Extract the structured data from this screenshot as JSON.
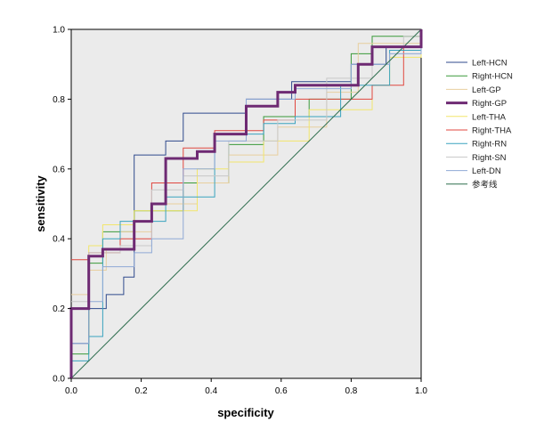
{
  "chart_data": {
    "type": "line",
    "title": "",
    "xlabel": "specificity",
    "ylabel": "sensitivity",
    "xlim": [
      0,
      1
    ],
    "ylim": [
      0,
      1
    ],
    "xticks": [
      "0.0",
      "0.2",
      "0.4",
      "0.6",
      "0.8",
      "1.0"
    ],
    "yticks": [
      "0.0",
      "0.2",
      "0.4",
      "0.6",
      "0.8",
      "1.0"
    ],
    "grid": false,
    "plot_background": "#ebebeb",
    "legend_position": "right",
    "series": [
      {
        "name": "Left-HCN",
        "color": "#2f4a8c",
        "width": 1,
        "points": [
          [
            0,
            0
          ],
          [
            0,
            0.1
          ],
          [
            0.05,
            0.1
          ],
          [
            0.05,
            0.2
          ],
          [
            0.1,
            0.2
          ],
          [
            0.1,
            0.24
          ],
          [
            0.15,
            0.24
          ],
          [
            0.15,
            0.29
          ],
          [
            0.18,
            0.29
          ],
          [
            0.18,
            0.64
          ],
          [
            0.27,
            0.64
          ],
          [
            0.27,
            0.68
          ],
          [
            0.32,
            0.68
          ],
          [
            0.32,
            0.76
          ],
          [
            0.5,
            0.76
          ],
          [
            0.5,
            0.8
          ],
          [
            0.63,
            0.8
          ],
          [
            0.63,
            0.85
          ],
          [
            0.8,
            0.85
          ],
          [
            0.8,
            0.9
          ],
          [
            0.9,
            0.9
          ],
          [
            0.9,
            0.95
          ],
          [
            1,
            0.95
          ],
          [
            1,
            1
          ]
        ]
      },
      {
        "name": "Right-HCN",
        "color": "#3a9a3a",
        "width": 1,
        "points": [
          [
            0,
            0
          ],
          [
            0,
            0.07
          ],
          [
            0.05,
            0.07
          ],
          [
            0.05,
            0.33
          ],
          [
            0.09,
            0.33
          ],
          [
            0.09,
            0.42
          ],
          [
            0.18,
            0.42
          ],
          [
            0.18,
            0.48
          ],
          [
            0.32,
            0.48
          ],
          [
            0.32,
            0.56
          ],
          [
            0.45,
            0.56
          ],
          [
            0.45,
            0.67
          ],
          [
            0.55,
            0.67
          ],
          [
            0.55,
            0.75
          ],
          [
            0.68,
            0.75
          ],
          [
            0.68,
            0.8
          ],
          [
            0.8,
            0.8
          ],
          [
            0.8,
            0.93
          ],
          [
            0.86,
            0.93
          ],
          [
            0.86,
            0.98
          ],
          [
            1,
            0.98
          ],
          [
            1,
            1
          ]
        ]
      },
      {
        "name": "Left-GP",
        "color": "#e8cf9e",
        "width": 1,
        "points": [
          [
            0,
            0.24
          ],
          [
            0.05,
            0.24
          ],
          [
            0.05,
            0.31
          ],
          [
            0.1,
            0.31
          ],
          [
            0.1,
            0.37
          ],
          [
            0.14,
            0.37
          ],
          [
            0.14,
            0.42
          ],
          [
            0.23,
            0.42
          ],
          [
            0.23,
            0.5
          ],
          [
            0.36,
            0.5
          ],
          [
            0.36,
            0.56
          ],
          [
            0.45,
            0.56
          ],
          [
            0.45,
            0.64
          ],
          [
            0.59,
            0.64
          ],
          [
            0.59,
            0.72
          ],
          [
            0.73,
            0.72
          ],
          [
            0.73,
            0.82
          ],
          [
            0.82,
            0.82
          ],
          [
            0.82,
            0.96
          ],
          [
            1,
            0.96
          ],
          [
            1,
            1
          ]
        ]
      },
      {
        "name": "Right-GP",
        "color": "#6e2a73",
        "width": 3,
        "points": [
          [
            0,
            0
          ],
          [
            0,
            0.2
          ],
          [
            0.05,
            0.2
          ],
          [
            0.05,
            0.35
          ],
          [
            0.09,
            0.35
          ],
          [
            0.09,
            0.37
          ],
          [
            0.18,
            0.37
          ],
          [
            0.18,
            0.45
          ],
          [
            0.23,
            0.45
          ],
          [
            0.23,
            0.5
          ],
          [
            0.27,
            0.5
          ],
          [
            0.27,
            0.63
          ],
          [
            0.36,
            0.63
          ],
          [
            0.36,
            0.65
          ],
          [
            0.41,
            0.65
          ],
          [
            0.41,
            0.7
          ],
          [
            0.5,
            0.7
          ],
          [
            0.5,
            0.78
          ],
          [
            0.59,
            0.78
          ],
          [
            0.59,
            0.82
          ],
          [
            0.64,
            0.82
          ],
          [
            0.64,
            0.84
          ],
          [
            0.82,
            0.84
          ],
          [
            0.82,
            0.9
          ],
          [
            0.86,
            0.9
          ],
          [
            0.86,
            0.95
          ],
          [
            1,
            0.95
          ],
          [
            1,
            1
          ]
        ]
      },
      {
        "name": "Left-THA",
        "color": "#f2e66c",
        "width": 1,
        "points": [
          [
            0,
            0.2
          ],
          [
            0.05,
            0.2
          ],
          [
            0.05,
            0.38
          ],
          [
            0.09,
            0.38
          ],
          [
            0.09,
            0.44
          ],
          [
            0.18,
            0.44
          ],
          [
            0.18,
            0.48
          ],
          [
            0.36,
            0.48
          ],
          [
            0.36,
            0.6
          ],
          [
            0.45,
            0.6
          ],
          [
            0.45,
            0.62
          ],
          [
            0.55,
            0.62
          ],
          [
            0.55,
            0.68
          ],
          [
            0.68,
            0.68
          ],
          [
            0.68,
            0.77
          ],
          [
            0.86,
            0.77
          ],
          [
            0.86,
            0.84
          ],
          [
            0.91,
            0.84
          ],
          [
            0.91,
            0.92
          ],
          [
            1,
            0.92
          ],
          [
            1,
            1
          ]
        ]
      },
      {
        "name": "Right-THA",
        "color": "#e0473f",
        "width": 1,
        "points": [
          [
            0,
            0.34
          ],
          [
            0.05,
            0.34
          ],
          [
            0.05,
            0.36
          ],
          [
            0.14,
            0.36
          ],
          [
            0.14,
            0.4
          ],
          [
            0.23,
            0.4
          ],
          [
            0.23,
            0.56
          ],
          [
            0.32,
            0.56
          ],
          [
            0.32,
            0.66
          ],
          [
            0.41,
            0.66
          ],
          [
            0.41,
            0.71
          ],
          [
            0.55,
            0.71
          ],
          [
            0.55,
            0.74
          ],
          [
            0.64,
            0.74
          ],
          [
            0.64,
            0.8
          ],
          [
            0.86,
            0.8
          ],
          [
            0.86,
            0.84
          ],
          [
            0.95,
            0.84
          ],
          [
            0.95,
            0.95
          ],
          [
            1,
            0.95
          ],
          [
            1,
            1
          ]
        ]
      },
      {
        "name": "Right-RN",
        "color": "#3aa3bf",
        "width": 1,
        "points": [
          [
            0,
            0
          ],
          [
            0,
            0.05
          ],
          [
            0.05,
            0.05
          ],
          [
            0.05,
            0.12
          ],
          [
            0.09,
            0.12
          ],
          [
            0.09,
            0.4
          ],
          [
            0.14,
            0.4
          ],
          [
            0.14,
            0.45
          ],
          [
            0.27,
            0.45
          ],
          [
            0.27,
            0.52
          ],
          [
            0.41,
            0.52
          ],
          [
            0.41,
            0.7
          ],
          [
            0.55,
            0.7
          ],
          [
            0.55,
            0.73
          ],
          [
            0.64,
            0.73
          ],
          [
            0.64,
            0.75
          ],
          [
            0.77,
            0.75
          ],
          [
            0.77,
            0.84
          ],
          [
            0.91,
            0.84
          ],
          [
            0.91,
            0.94
          ],
          [
            1,
            0.94
          ],
          [
            1,
            1
          ]
        ]
      },
      {
        "name": "Right-SN",
        "color": "#c8c8c8",
        "width": 1,
        "points": [
          [
            0,
            0.22
          ],
          [
            0.05,
            0.22
          ],
          [
            0.05,
            0.36
          ],
          [
            0.14,
            0.36
          ],
          [
            0.14,
            0.38
          ],
          [
            0.23,
            0.38
          ],
          [
            0.23,
            0.54
          ],
          [
            0.32,
            0.54
          ],
          [
            0.32,
            0.58
          ],
          [
            0.45,
            0.58
          ],
          [
            0.45,
            0.68
          ],
          [
            0.59,
            0.68
          ],
          [
            0.59,
            0.74
          ],
          [
            0.73,
            0.74
          ],
          [
            0.73,
            0.86
          ],
          [
            0.86,
            0.86
          ],
          [
            0.86,
            0.95
          ],
          [
            0.95,
            0.95
          ],
          [
            0.95,
            0.98
          ],
          [
            1,
            0.98
          ],
          [
            1,
            1
          ]
        ]
      },
      {
        "name": "Left-DN",
        "color": "#8fa9d6",
        "width": 1,
        "points": [
          [
            0,
            0
          ],
          [
            0,
            0.1
          ],
          [
            0.05,
            0.1
          ],
          [
            0.05,
            0.22
          ],
          [
            0.09,
            0.22
          ],
          [
            0.09,
            0.32
          ],
          [
            0.18,
            0.32
          ],
          [
            0.18,
            0.36
          ],
          [
            0.23,
            0.36
          ],
          [
            0.23,
            0.4
          ],
          [
            0.32,
            0.4
          ],
          [
            0.32,
            0.6
          ],
          [
            0.41,
            0.6
          ],
          [
            0.41,
            0.68
          ],
          [
            0.5,
            0.68
          ],
          [
            0.5,
            0.8
          ],
          [
            0.64,
            0.8
          ],
          [
            0.64,
            0.83
          ],
          [
            0.8,
            0.83
          ],
          [
            0.8,
            0.9
          ],
          [
            0.91,
            0.9
          ],
          [
            0.91,
            0.93
          ],
          [
            1,
            0.93
          ],
          [
            1,
            1
          ]
        ]
      },
      {
        "name": "参考线",
        "color": "#2f6e4f",
        "width": 1,
        "points": [
          [
            0,
            0
          ],
          [
            1,
            1
          ]
        ]
      }
    ]
  }
}
